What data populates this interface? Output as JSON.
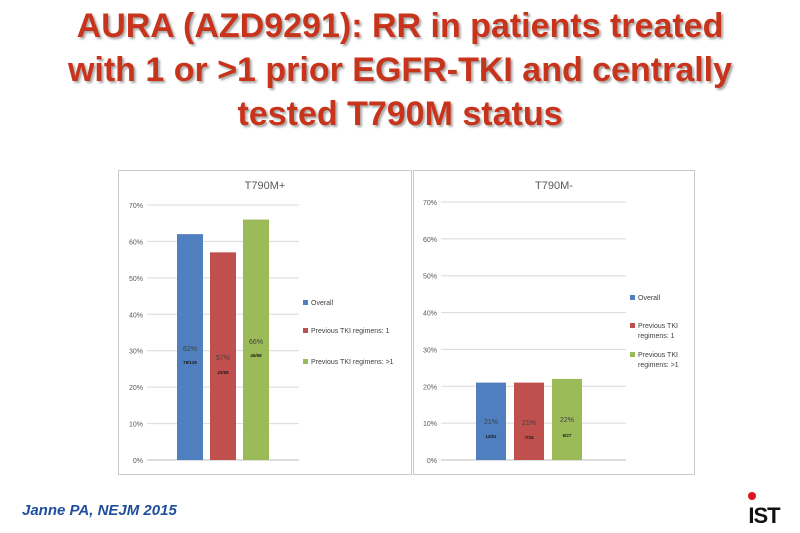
{
  "slide": {
    "title_lines": [
      "AURA (AZD9291): RR in patients treated",
      "with 1 or >1 prior EGFR-TKI and centrally",
      "tested T790M status"
    ],
    "citation": "Janne PA, NEJM 2015",
    "logo_text": "IST"
  },
  "colors": {
    "title": "#c8341b",
    "citation": "#1f4e9c",
    "overall": "#4f7fbf",
    "prev1": "#c0504d",
    "prev_gt1": "#9bbb59"
  },
  "chart_data": [
    {
      "type": "bar",
      "title": "T790M+",
      "ylim": [
        0,
        70
      ],
      "yticks": [
        "0%",
        "10%",
        "20%",
        "30%",
        "40%",
        "50%",
        "60%",
        "70%"
      ],
      "grid": true,
      "legend_position": "right",
      "series": [
        {
          "name": "Overall",
          "value": 62,
          "label": "62%",
          "sublabel": "78/126"
        },
        {
          "name": "Previous TKI regimens: 1",
          "value": 57,
          "label": "57%",
          "sublabel": "33/58"
        },
        {
          "name": "Previous TKI regimens: >1",
          "value": 66,
          "label": "66%",
          "sublabel": "45/68"
        }
      ]
    },
    {
      "type": "bar",
      "title": "T790M-",
      "ylim": [
        0,
        70
      ],
      "yticks": [
        "0%",
        "10%",
        "20%",
        "30%",
        "40%",
        "50%",
        "60%",
        "70%"
      ],
      "grid": true,
      "legend_position": "right",
      "series": [
        {
          "name": "Overall",
          "value": 21,
          "label": "21%",
          "sublabel": "13/61"
        },
        {
          "name": "Previous TKI regimens: 1",
          "value": 21,
          "label": "21%",
          "sublabel": "7/34"
        },
        {
          "name": "Previous TKI regimens: >1",
          "value": 22,
          "label": "22%",
          "sublabel": "6/27"
        }
      ]
    }
  ]
}
